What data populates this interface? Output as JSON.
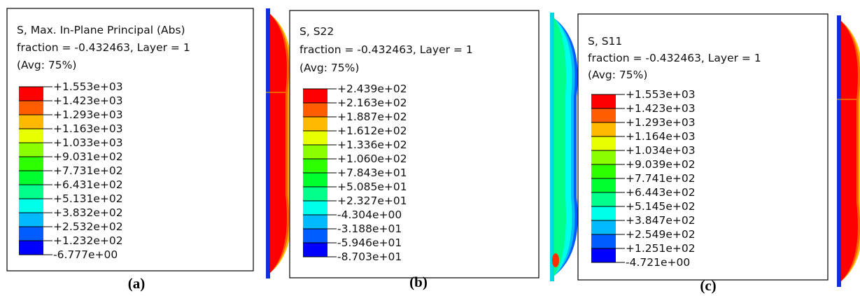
{
  "panels": [
    {
      "header": [
        "S, Max. In-Plane Principal (Abs)",
        "fraction = -0.432463, Layer = 1",
        "(Avg: 75%)"
      ],
      "legend": [
        "+1.553e+03",
        "+1.423e+03",
        "+1.293e+03",
        "+1.163e+03",
        "+1.033e+03",
        "+9.031e+02",
        "+7.731e+02",
        "+6.431e+02",
        "+5.131e+02",
        "+3.832e+02",
        "+2.532e+02",
        "+1.232e+02",
        "-6.777e+00"
      ],
      "caption": "(a)"
    },
    {
      "header": [
        "S, S22",
        "fraction = -0.432463, Layer = 1",
        "(Avg: 75%)"
      ],
      "legend": [
        "+2.439e+02",
        "+2.163e+02",
        "+1.887e+02",
        "+1.612e+02",
        "+1.336e+02",
        "+1.060e+02",
        "+7.843e+01",
        "+5.085e+01",
        "+2.327e+01",
        "-4.304e+00",
        "-3.188e+01",
        "-5.946e+01",
        "-8.703e+01"
      ],
      "caption": "(b)"
    },
    {
      "header": [
        "S, S11",
        "fraction = -0.432463, Layer = 1",
        "(Avg: 75%)"
      ],
      "legend": [
        "+1.553e+03",
        "+1.423e+03",
        "+1.293e+03",
        "+1.164e+03",
        "+1.034e+03",
        "+9.039e+02",
        "+7.741e+02",
        "+6.443e+02",
        "+5.145e+02",
        "+3.847e+02",
        "+2.549e+02",
        "+1.251e+02",
        "-4.721e+00"
      ],
      "caption": "(c)"
    }
  ]
}
